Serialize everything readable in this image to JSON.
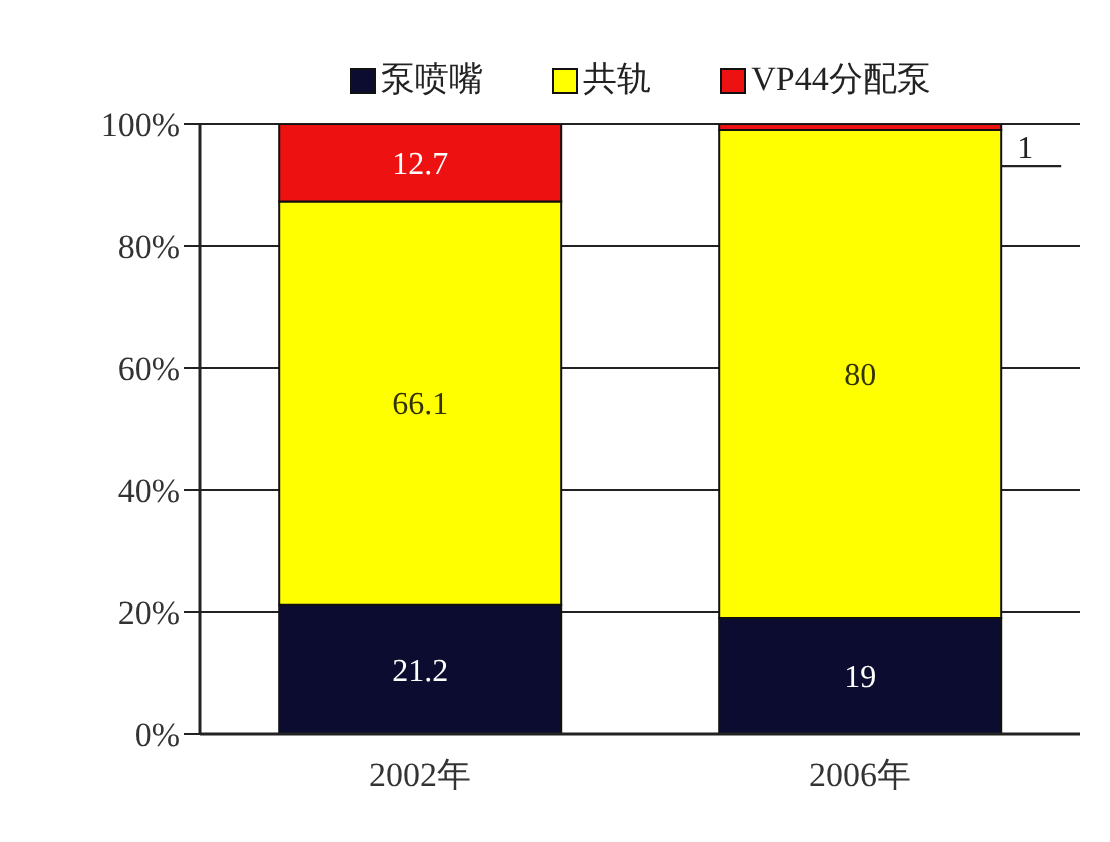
{
  "chart_data": {
    "type": "bar",
    "categories": [
      "2002年",
      "2006年"
    ],
    "series": [
      {
        "name": "泵喷嘴",
        "color": "#0c0c30",
        "values": [
          21.2,
          19
        ]
      },
      {
        "name": "共轨",
        "color": "#ffff00",
        "values": [
          66.1,
          80
        ]
      },
      {
        "name": "VP44分配泵",
        "color": "#ee1111",
        "values": [
          12.7,
          1
        ]
      }
    ],
    "stacked": true,
    "ylim": [
      0,
      100
    ],
    "yticks": [
      {
        "value": 0,
        "label": "0%"
      },
      {
        "value": 20,
        "label": "20%"
      },
      {
        "value": 40,
        "label": "40%"
      },
      {
        "value": 60,
        "label": "60%"
      },
      {
        "value": 80,
        "label": "80%"
      },
      {
        "value": 100,
        "label": "100%"
      }
    ],
    "grid": "y",
    "legend": "top",
    "data_labels": true
  }
}
